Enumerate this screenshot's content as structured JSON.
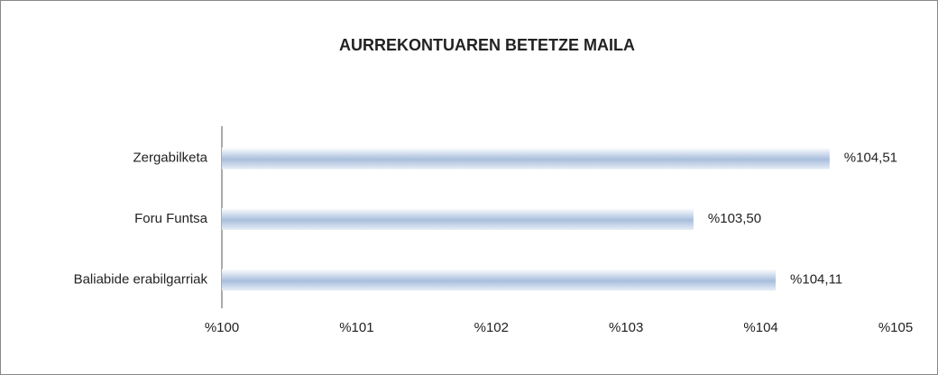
{
  "chart_data": {
    "type": "bar",
    "orientation": "horizontal",
    "title": "AURREKONTUAREN  BETETZE MAILA",
    "categories": [
      "Zergabilketa",
      "Foru Funtsa",
      "Baliabide erabilgarriak"
    ],
    "values": [
      104.51,
      103.5,
      104.11
    ],
    "value_labels": [
      "%104,51",
      "%103,50",
      "%104,11"
    ],
    "color": "#a8bedc",
    "xlim": [
      100,
      105
    ],
    "xticks": [
      {
        "value": 100,
        "label": "%100"
      },
      {
        "value": 101,
        "label": "%101"
      },
      {
        "value": 102,
        "label": "%102"
      },
      {
        "value": 103,
        "label": "%103"
      },
      {
        "value": 104,
        "label": "%104"
      },
      {
        "value": 105,
        "label": "%105"
      }
    ],
    "grid": false
  }
}
